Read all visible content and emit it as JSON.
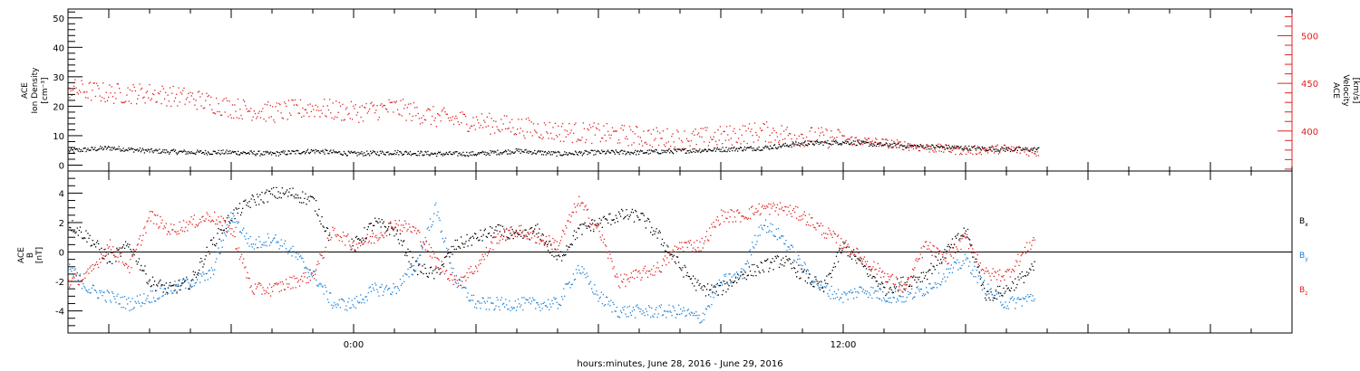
{
  "xaxis": {
    "label": "hours:minutes, June 28, 2016 - June 29, 2016",
    "range_hours": [
      -7,
      23
    ],
    "tick_labels": [
      {
        "hour": 0,
        "label": "0:00"
      },
      {
        "hour": 12,
        "label": "12:00"
      }
    ]
  },
  "chart_data": [
    {
      "type": "scatter",
      "panel": "top",
      "left_ylabel": [
        "ACE",
        "Ion Density",
        "[cm⁻³]"
      ],
      "right_ylabel": [
        "ACE",
        "Velocity",
        "[km/s]"
      ],
      "left_ylim": [
        -2,
        53
      ],
      "left_ticks": [
        0,
        10,
        20,
        30,
        40,
        50
      ],
      "right_ylim": [
        358,
        528
      ],
      "right_ticks": [
        400,
        450,
        500
      ],
      "series": [
        {
          "axis": "left",
          "color": "#000000",
          "points": [
            [
              -7.0,
              5.0
            ],
            [
              -6.0,
              6.0
            ],
            [
              -5.0,
              5.0
            ],
            [
              -4.0,
              4.5
            ],
            [
              -3.0,
              4.5
            ],
            [
              -2.0,
              4.0
            ],
            [
              -1.0,
              5.0
            ],
            [
              0.0,
              4.0
            ],
            [
              1.0,
              4.5
            ],
            [
              2.0,
              4.0
            ],
            [
              3.0,
              4.0
            ],
            [
              4.0,
              5.0
            ],
            [
              5.0,
              4.0
            ],
            [
              6.0,
              4.5
            ],
            [
              7.0,
              4.5
            ],
            [
              8.0,
              5.0
            ],
            [
              9.0,
              5.5
            ],
            [
              10.0,
              6.0
            ],
            [
              11.0,
              7.5
            ],
            [
              12.0,
              8.0
            ],
            [
              13.0,
              7.0
            ],
            [
              14.0,
              6.5
            ],
            [
              15.0,
              6.0
            ],
            [
              16.0,
              5.5
            ],
            [
              16.8,
              5.5
            ]
          ]
        },
        {
          "axis": "right",
          "color": "#e02020",
          "points": [
            [
              -7.0,
              445.0
            ],
            [
              -6.0,
              440.0
            ],
            [
              -5.0,
              440.0
            ],
            [
              -4.0,
              435.0
            ],
            [
              -3.0,
              425.0
            ],
            [
              -2.0,
              420.0
            ],
            [
              -1.0,
              425.0
            ],
            [
              0.0,
              420.0
            ],
            [
              1.0,
              425.0
            ],
            [
              2.0,
              415.0
            ],
            [
              3.0,
              410.0
            ],
            [
              4.0,
              405.0
            ],
            [
              5.0,
              400.0
            ],
            [
              6.0,
              398.0
            ],
            [
              7.0,
              395.0
            ],
            [
              8.0,
              392.0
            ],
            [
              9.0,
              395.0
            ],
            [
              10.0,
              400.0
            ],
            [
              11.0,
              395.0
            ],
            [
              12.0,
              392.0
            ],
            [
              13.0,
              388.0
            ],
            [
              14.0,
              383.0
            ],
            [
              15.0,
              380.0
            ],
            [
              16.0,
              382.0
            ],
            [
              16.8,
              378.0
            ]
          ]
        }
      ]
    },
    {
      "type": "scatter",
      "panel": "bottom",
      "left_ylabel": [
        "ACE",
        "B",
        "[nT]"
      ],
      "ylim": [
        -5.5,
        5.5
      ],
      "ticks": [
        -4,
        -2,
        0,
        2,
        4
      ],
      "zero_line": true,
      "legend_position": "right",
      "series": [
        {
          "name": "B",
          "subscript": "x",
          "color": "#000000",
          "points": [
            [
              -7.0,
              2.0
            ],
            [
              -6.5,
              1.0
            ],
            [
              -6.0,
              -0.5
            ],
            [
              -5.5,
              0.5
            ],
            [
              -5.0,
              -2.0
            ],
            [
              -4.5,
              -2.5
            ],
            [
              -4.0,
              -2.0
            ],
            [
              -3.5,
              0.5
            ],
            [
              -3.0,
              2.5
            ],
            [
              -2.5,
              3.5
            ],
            [
              -2.0,
              4.0
            ],
            [
              -1.5,
              4.0
            ],
            [
              -1.0,
              3.5
            ],
            [
              -0.5,
              0.5
            ],
            [
              0.0,
              0.5
            ],
            [
              0.5,
              2.0
            ],
            [
              1.0,
              1.5
            ],
            [
              1.5,
              -1.0
            ],
            [
              2.0,
              -1.5
            ],
            [
              2.5,
              0.5
            ],
            [
              3.0,
              1.0
            ],
            [
              3.5,
              1.5
            ],
            [
              4.0,
              1.0
            ],
            [
              4.5,
              1.5
            ],
            [
              5.0,
              -0.5
            ],
            [
              5.5,
              1.5
            ],
            [
              6.0,
              2.0
            ],
            [
              6.5,
              2.5
            ],
            [
              7.0,
              2.5
            ],
            [
              7.5,
              1.0
            ],
            [
              8.0,
              -1.0
            ],
            [
              8.5,
              -2.5
            ],
            [
              9.0,
              -2.5
            ],
            [
              9.5,
              -1.5
            ],
            [
              10.0,
              -1.0
            ],
            [
              10.5,
              -0.5
            ],
            [
              11.0,
              -1.5
            ],
            [
              11.5,
              -2.5
            ],
            [
              12.0,
              0.5
            ],
            [
              12.5,
              -1.0
            ],
            [
              13.0,
              -2.5
            ],
            [
              13.5,
              -2.0
            ],
            [
              14.0,
              -1.5
            ],
            [
              14.5,
              0.0
            ],
            [
              15.0,
              1.5
            ],
            [
              15.5,
              -3.0
            ],
            [
              16.0,
              -2.5
            ],
            [
              16.7,
              -1.0
            ]
          ]
        },
        {
          "name": "B",
          "subscript": "y",
          "color": "#1a7fd4",
          "points": [
            [
              -7.0,
              -1.0
            ],
            [
              -6.5,
              -2.5
            ],
            [
              -6.0,
              -3.0
            ],
            [
              -5.5,
              -3.5
            ],
            [
              -5.0,
              -3.0
            ],
            [
              -4.5,
              -2.5
            ],
            [
              -4.0,
              -2.0
            ],
            [
              -3.5,
              -1.5
            ],
            [
              -3.0,
              2.5
            ],
            [
              -2.5,
              0.5
            ],
            [
              -2.0,
              1.0
            ],
            [
              -1.5,
              0.0
            ],
            [
              -1.0,
              -1.5
            ],
            [
              -0.5,
              -3.5
            ],
            [
              0.0,
              -3.5
            ],
            [
              0.5,
              -2.5
            ],
            [
              1.0,
              -2.5
            ],
            [
              1.5,
              -1.0
            ],
            [
              2.0,
              3.0
            ],
            [
              2.5,
              -2.0
            ],
            [
              3.0,
              -3.5
            ],
            [
              3.5,
              -3.5
            ],
            [
              4.0,
              -3.5
            ],
            [
              4.5,
              -3.5
            ],
            [
              5.0,
              -3.5
            ],
            [
              5.5,
              -1.0
            ],
            [
              6.0,
              -3.0
            ],
            [
              6.5,
              -4.0
            ],
            [
              7.0,
              -4.0
            ],
            [
              7.5,
              -4.0
            ],
            [
              8.0,
              -4.0
            ],
            [
              8.5,
              -4.5
            ],
            [
              9.0,
              -2.0
            ],
            [
              9.5,
              -1.5
            ],
            [
              10.0,
              2.0
            ],
            [
              10.5,
              1.0
            ],
            [
              11.0,
              -1.0
            ],
            [
              11.5,
              -2.5
            ],
            [
              12.0,
              -3.0
            ],
            [
              12.5,
              -2.5
            ],
            [
              13.0,
              -3.0
            ],
            [
              13.5,
              -3.0
            ],
            [
              14.0,
              -2.5
            ],
            [
              14.5,
              -1.5
            ],
            [
              15.0,
              -0.5
            ],
            [
              15.5,
              -2.5
            ],
            [
              16.0,
              -3.5
            ],
            [
              16.7,
              -3.0
            ]
          ]
        },
        {
          "name": "B",
          "subscript": "z",
          "color": "#e02020",
          "points": [
            [
              -7.0,
              -2.0
            ],
            [
              -6.5,
              -1.5
            ],
            [
              -6.0,
              0.5
            ],
            [
              -5.5,
              -1.0
            ],
            [
              -5.0,
              2.5
            ],
            [
              -4.5,
              1.5
            ],
            [
              -4.0,
              2.0
            ],
            [
              -3.5,
              2.5
            ],
            [
              -3.0,
              1.5
            ],
            [
              -2.5,
              -2.5
            ],
            [
              -2.0,
              -2.5
            ],
            [
              -1.5,
              -2.0
            ],
            [
              -1.0,
              -1.5
            ],
            [
              -0.5,
              1.5
            ],
            [
              0.0,
              0.5
            ],
            [
              0.5,
              1.0
            ],
            [
              1.0,
              2.0
            ],
            [
              1.5,
              1.5
            ],
            [
              2.0,
              -0.5
            ],
            [
              2.5,
              -2.0
            ],
            [
              3.0,
              -1.0
            ],
            [
              3.5,
              1.0
            ],
            [
              4.0,
              1.5
            ],
            [
              4.5,
              1.0
            ],
            [
              5.0,
              0.5
            ],
            [
              5.5,
              3.5
            ],
            [
              6.0,
              1.5
            ],
            [
              6.5,
              -2.0
            ],
            [
              7.0,
              -1.5
            ],
            [
              7.5,
              -1.0
            ],
            [
              8.0,
              0.5
            ],
            [
              8.5,
              0.5
            ],
            [
              9.0,
              2.5
            ],
            [
              9.5,
              2.5
            ],
            [
              10.0,
              3.0
            ],
            [
              10.5,
              3.0
            ],
            [
              11.0,
              2.5
            ],
            [
              11.5,
              1.5
            ],
            [
              12.0,
              0.5
            ],
            [
              12.5,
              -0.5
            ],
            [
              13.0,
              -1.5
            ],
            [
              13.5,
              -2.5
            ],
            [
              14.0,
              0.5
            ],
            [
              14.5,
              -0.5
            ],
            [
              15.0,
              1.0
            ],
            [
              15.5,
              -1.5
            ],
            [
              16.0,
              -1.5
            ],
            [
              16.7,
              1.0
            ]
          ]
        }
      ]
    }
  ]
}
